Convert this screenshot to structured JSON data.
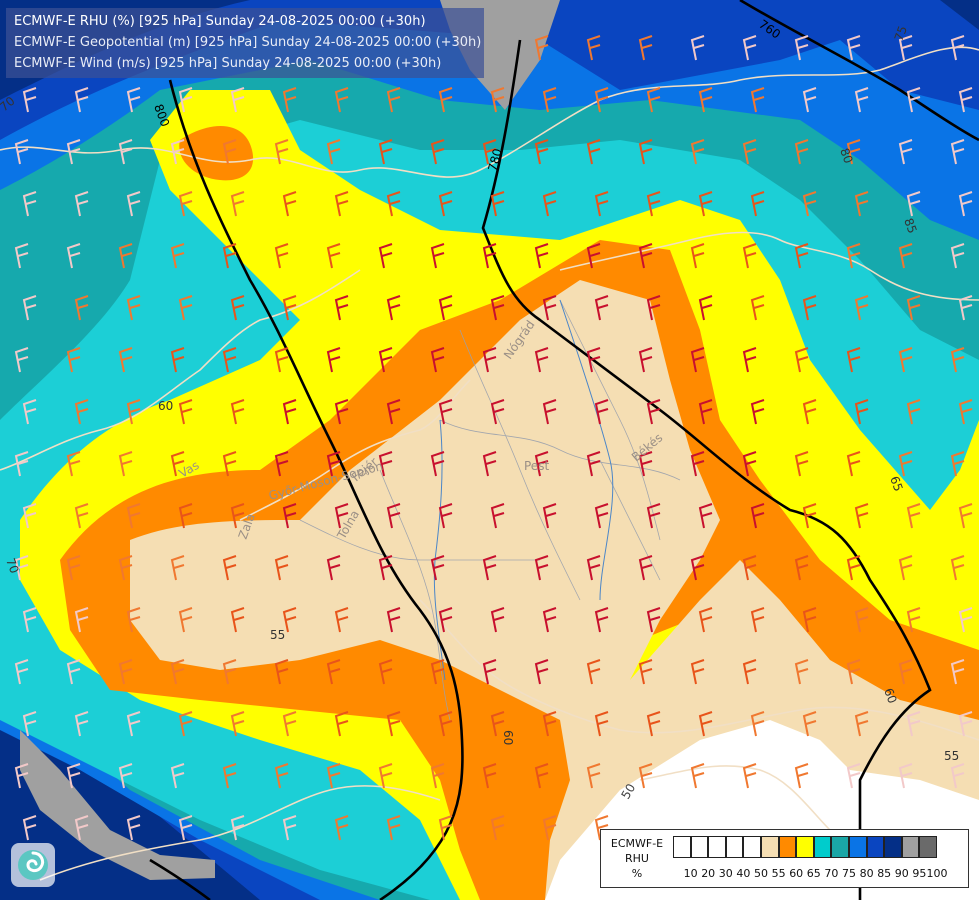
{
  "header": {
    "line1": "ECMWF-E RHU (%) [925 hPa] Sunday 24-08-2025 00:00 (+30h)",
    "line2": "ECMWF-E Geopotential (m) [925 hPa] Sunday 24-08-2025 00:00 (+30h)",
    "line3": "ECMWF-E Wind (m/s) [925 hPa] Sunday 24-08-2025 00:00 (+30h)"
  },
  "legend": {
    "line1": "ECMWF-E",
    "line2": "RHU",
    "line3": "%",
    "ticks": [
      "10",
      "20",
      "30",
      "40",
      "50",
      "55",
      "60",
      "65",
      "70",
      "75",
      "80",
      "85",
      "90",
      "95",
      "100"
    ],
    "colors": [
      "#ffffff",
      "#ffffff",
      "#ffffff",
      "#ffffff",
      "#ffffff",
      "#f5deb3",
      "#ff8a00",
      "#ffff00",
      "#00cccc",
      "#1aa7a7",
      "#0a74e6",
      "#0a45c0",
      "#042f87",
      "#a0a0a0",
      "#6a6a6a"
    ]
  },
  "contour_labels": {
    "geo_760": "760",
    "geo_780": "780",
    "geo_800": "800",
    "rh_50": "50",
    "rh_55a": "55",
    "rh_55b": "55",
    "rh_60a": "60",
    "rh_60b": "60",
    "rh_60c": "60",
    "rh_65": "65",
    "rh_70a": "70",
    "rh_70b": "70",
    "rh_75": "75",
    "rh_80": "80",
    "rh_85": "85"
  },
  "places": {
    "pest": "Pest",
    "bekes": "Békés",
    "fejer": "Fejér",
    "tolna": "Tolna",
    "zala": "Zala",
    "vas": "Vas",
    "gyor": "Győr-Moson-Sopron",
    "pest_n": "Nógrád"
  },
  "colors": {
    "c50": "#f5deb3",
    "c55": "#ff8a00",
    "c60": "#ffff00",
    "c65": "#1ccfd6",
    "c70": "#16a9ad",
    "c75": "#0a74e6",
    "c80": "#0a45c0",
    "c85": "#042f87",
    "c90": "#a0a0a0",
    "white": "#ffffff"
  },
  "logo": {
    "icon": "swirl-logo-icon"
  }
}
